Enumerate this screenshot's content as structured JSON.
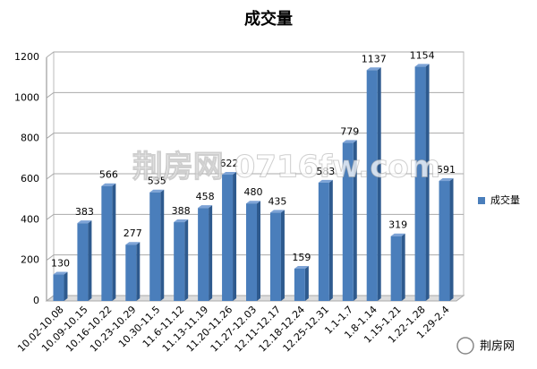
{
  "chart_data": {
    "type": "bar",
    "title": "成交量",
    "categories": [
      "10.02-10.08",
      "10.09-10.15",
      "10.16-10.22",
      "10.23-10.29",
      "10.30-11.5",
      "11.6-11.12",
      "11.13-11.19",
      "11.20-11.26",
      "11.27-12.03",
      "12.11-12.17",
      "12.18-12.24",
      "12.25-12.31",
      "1.1-1.7",
      "1.8-1.14",
      "1.15-1.21",
      "1.22-1.28",
      "1.29-2.4"
    ],
    "series": [
      {
        "name": "成交量",
        "color": "#4a7ebb",
        "values": [
          130,
          383,
          566,
          277,
          535,
          388,
          458,
          622,
          480,
          435,
          159,
          583,
          779,
          1137,
          319,
          1154,
          591
        ]
      }
    ],
    "ylim": [
      0,
      1200
    ],
    "yticks": [
      0,
      200,
      400,
      600,
      800,
      1000,
      1200
    ],
    "grid": true,
    "legend": "right",
    "watermark": "荆房网 0716fw.com",
    "logo_text": "荆房网"
  }
}
